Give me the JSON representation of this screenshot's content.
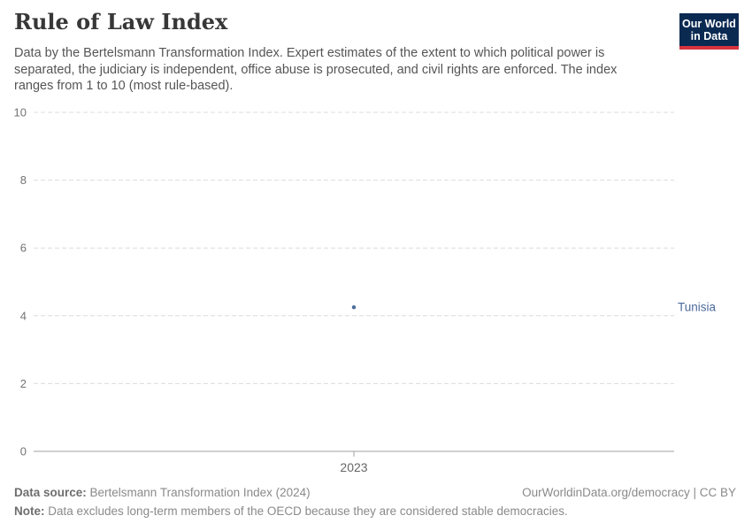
{
  "header": {
    "title": "Rule of Law Index",
    "subtitle": "Data by the Bertelsmann Transformation Index. Expert estimates of the extent to which political power is separated, the judiciary is independent, office abuse is prosecuted, and civil rights are enforced. The index ranges from 1 to 10 (most rule-based).",
    "logo": {
      "line1": "Our World",
      "line2": "in Data"
    }
  },
  "chart_data": {
    "type": "scatter",
    "title": "Rule of Law Index",
    "x": [
      2023
    ],
    "xticks": [
      "2023"
    ],
    "series": [
      {
        "name": "Tunisia",
        "values": [
          4.25
        ],
        "color": "#4C6A9C"
      }
    ],
    "ylim": [
      0,
      10
    ],
    "yticks": [
      0,
      2,
      4,
      6,
      8,
      10
    ],
    "grid": true,
    "legend_position": "entity-label-right"
  },
  "footer": {
    "source_label": "Data source:",
    "source_text": " Bertelsmann Transformation Index (2024)",
    "credit": "OurWorldinData.org/democracy | CC BY",
    "note_label": "Note:",
    "note_text": " Data excludes long-term members of the OECD because they are considered stable democracies."
  },
  "colors": {
    "accent_blue": "#4C6A9C",
    "grid_line": "#dcdcdc",
    "axis_line": "#a0a0a0",
    "y_tick_label": "#737373",
    "x_tick_label": "#666666",
    "title": "#373737",
    "subtitle": "#555555",
    "footer_text": "#8a8a8a",
    "footer_label": "#6e6e6e",
    "logo_background": "#0b2a52",
    "logo_stripe": "#d8333f"
  }
}
